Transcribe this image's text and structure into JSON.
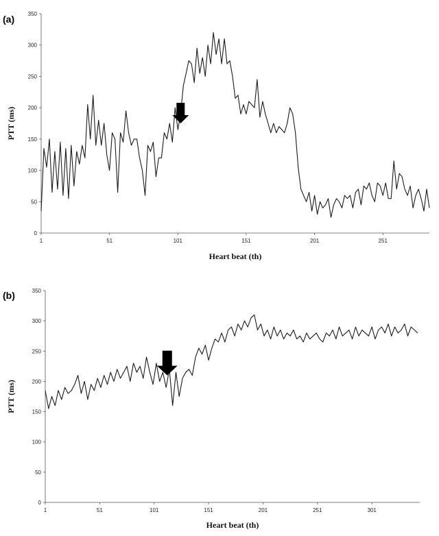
{
  "chart_data": [
    {
      "type": "line",
      "panel_label": "(a)",
      "title": "",
      "xlabel": "Heart beat (th)",
      "ylabel": "PTT (ms)",
      "xlim": [
        1,
        285
      ],
      "ylim": [
        0,
        350
      ],
      "x_ticks": [
        1,
        51,
        101,
        151,
        201,
        251
      ],
      "y_ticks": [
        0,
        50,
        100,
        150,
        200,
        250,
        300,
        350
      ],
      "grid": false,
      "annotation": {
        "type": "arrow",
        "x": 103,
        "y": 175
      },
      "series": [
        {
          "x": [
            1,
            3,
            5,
            7,
            9,
            11,
            13,
            15,
            17,
            19,
            21,
            23,
            25,
            27,
            29,
            31,
            33,
            35,
            37,
            39,
            41,
            43,
            45,
            47,
            49,
            51,
            53,
            55,
            57,
            59,
            61,
            63,
            65,
            67,
            69,
            71,
            73,
            75,
            77,
            79,
            81,
            83,
            85,
            87,
            89,
            91,
            93,
            95,
            97,
            99,
            101,
            103,
            105,
            107,
            109,
            111,
            113,
            115,
            117,
            119,
            121,
            123,
            125,
            127,
            129,
            131,
            133,
            135,
            137,
            139,
            141,
            143,
            145,
            147,
            149,
            151,
            153,
            155,
            157,
            159,
            161,
            163,
            165,
            167,
            169,
            171,
            173,
            175,
            177,
            179,
            181,
            183,
            185,
            187,
            189,
            191,
            193,
            195,
            197,
            199,
            201,
            203,
            205,
            207,
            209,
            211,
            213,
            215,
            217,
            219,
            221,
            223,
            225,
            227,
            229,
            231,
            233,
            235,
            237,
            239,
            241,
            243,
            245,
            247,
            249,
            251,
            253,
            255,
            257,
            259,
            261,
            263,
            265,
            267,
            269,
            271,
            273,
            275,
            277,
            279,
            281,
            283,
            285
          ],
          "values": [
            35,
            135,
            105,
            150,
            65,
            130,
            70,
            145,
            60,
            135,
            55,
            140,
            75,
            130,
            110,
            140,
            120,
            205,
            150,
            220,
            140,
            180,
            140,
            175,
            125,
            100,
            160,
            150,
            65,
            160,
            145,
            195,
            160,
            140,
            150,
            150,
            120,
            100,
            60,
            140,
            130,
            145,
            90,
            120,
            120,
            160,
            150,
            175,
            145,
            200,
            165,
            190,
            235,
            255,
            275,
            270,
            240,
            295,
            255,
            280,
            250,
            300,
            270,
            320,
            285,
            310,
            270,
            310,
            270,
            275,
            250,
            215,
            220,
            190,
            205,
            190,
            210,
            205,
            200,
            245,
            185,
            210,
            190,
            175,
            160,
            175,
            160,
            170,
            165,
            160,
            175,
            200,
            190,
            160,
            105,
            70,
            60,
            50,
            65,
            35,
            60,
            30,
            50,
            40,
            45,
            55,
            25,
            45,
            55,
            50,
            40,
            60,
            55,
            60,
            40,
            65,
            70,
            45,
            75,
            70,
            80,
            60,
            50,
            80,
            75,
            60,
            80,
            55,
            55,
            115,
            70,
            95,
            90,
            70,
            60,
            75,
            40,
            60,
            70,
            55,
            35,
            70,
            40
          ]
        }
      ]
    },
    {
      "type": "line",
      "panel_label": "(b)",
      "title": "",
      "xlabel": "Heart beat (th)",
      "ylabel": "PTT (ms)",
      "xlim": [
        1,
        345
      ],
      "ylim": [
        0,
        350
      ],
      "x_ticks": [
        1,
        51,
        101,
        151,
        201,
        251,
        301
      ],
      "y_ticks": [
        0,
        50,
        100,
        150,
        200,
        250,
        300,
        350
      ],
      "grid": false,
      "annotation": {
        "type": "arrow",
        "x": 113,
        "y": 210
      },
      "series": [
        {
          "x": [
            1,
            4,
            7,
            10,
            13,
            16,
            19,
            22,
            25,
            28,
            31,
            34,
            37,
            40,
            43,
            46,
            49,
            52,
            55,
            58,
            61,
            64,
            67,
            70,
            73,
            76,
            79,
            82,
            85,
            88,
            91,
            94,
            97,
            100,
            103,
            106,
            109,
            112,
            115,
            118,
            121,
            124,
            127,
            130,
            133,
            136,
            139,
            142,
            145,
            148,
            151,
            154,
            157,
            160,
            163,
            166,
            169,
            172,
            175,
            178,
            181,
            184,
            187,
            190,
            193,
            196,
            199,
            202,
            205,
            208,
            211,
            214,
            217,
            220,
            223,
            226,
            229,
            232,
            235,
            238,
            241,
            244,
            247,
            250,
            253,
            256,
            259,
            262,
            265,
            268,
            271,
            274,
            277,
            280,
            283,
            286,
            289,
            292,
            295,
            298,
            301,
            304,
            307,
            310,
            313,
            316,
            319,
            322,
            325,
            328,
            331,
            334,
            337,
            340,
            343
          ],
          "values": [
            185,
            155,
            175,
            160,
            185,
            170,
            190,
            180,
            185,
            195,
            210,
            180,
            200,
            170,
            195,
            185,
            205,
            190,
            210,
            195,
            215,
            200,
            220,
            205,
            215,
            225,
            200,
            230,
            215,
            225,
            205,
            240,
            215,
            195,
            230,
            200,
            215,
            190,
            220,
            160,
            215,
            175,
            205,
            215,
            220,
            210,
            240,
            255,
            245,
            260,
            235,
            255,
            270,
            265,
            280,
            265,
            285,
            290,
            275,
            295,
            285,
            300,
            290,
            305,
            310,
            285,
            295,
            275,
            285,
            270,
            290,
            275,
            285,
            270,
            280,
            275,
            285,
            270,
            275,
            265,
            280,
            270,
            275,
            280,
            270,
            265,
            280,
            275,
            285,
            270,
            290,
            275,
            280,
            285,
            270,
            290,
            275,
            285,
            280,
            275,
            290,
            270,
            285,
            290,
            280,
            295,
            275,
            290,
            280,
            285,
            295,
            275,
            290,
            285,
            280
          ]
        }
      ]
    }
  ]
}
